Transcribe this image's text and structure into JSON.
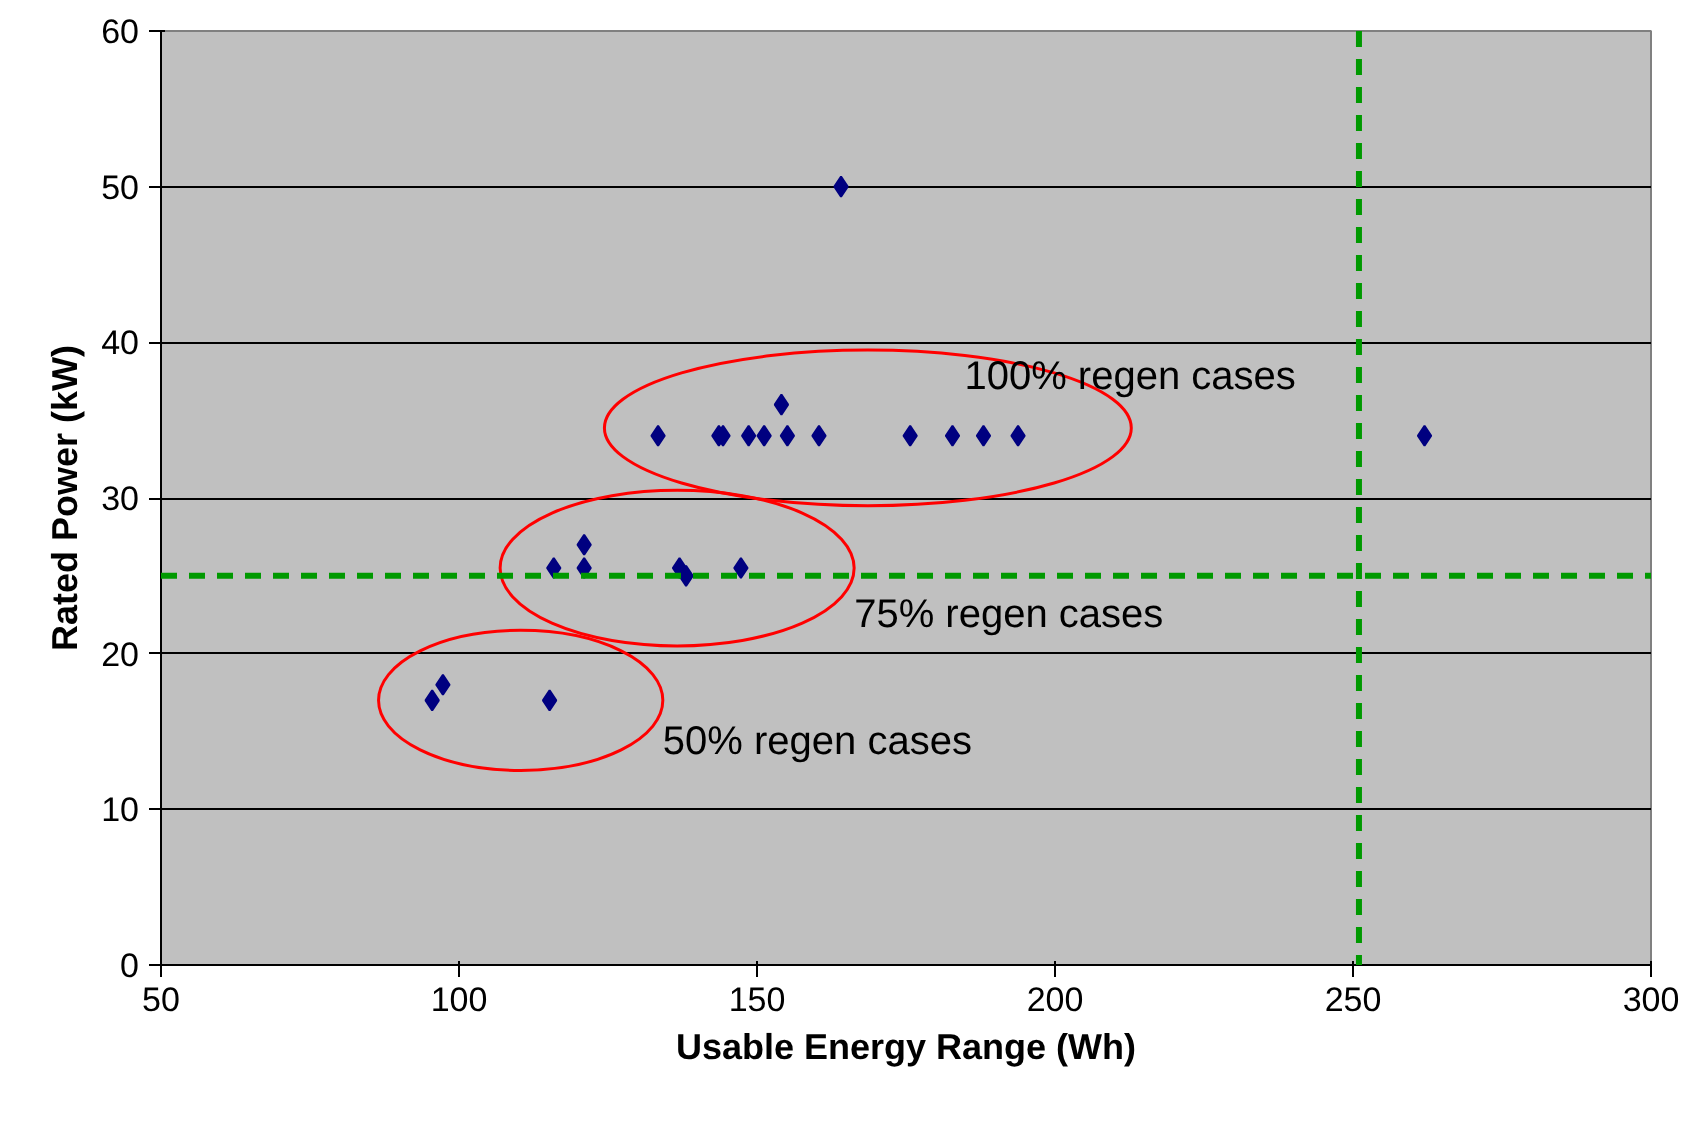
{
  "chart_data": {
    "type": "scatter",
    "xlabel": "Usable Energy Range (Wh)",
    "ylabel": "Rated Power (kW)",
    "xlim": [
      50,
      300
    ],
    "ylim": [
      0,
      60
    ],
    "xticks": [
      50,
      100,
      150,
      200,
      250,
      300
    ],
    "yticks": [
      0,
      10,
      20,
      30,
      40,
      50,
      60
    ],
    "grid": "y",
    "marker": "diamond",
    "series": [
      {
        "color": "#000080",
        "x": [
          133.4,
          143.6,
          144.3,
          148.6,
          151.2,
          154.1,
          155.1,
          160.4,
          175.7,
          182.8,
          188.0,
          193.8
        ],
        "values": [
          34,
          34,
          34,
          34,
          34,
          36,
          34,
          34,
          34,
          34,
          34,
          34
        ]
      },
      {
        "color": "#000080",
        "x": [
          115.9,
          121.0,
          121.0,
          137.0,
          138.1,
          147.3
        ],
        "values": [
          25.5,
          27,
          25.5,
          25.5,
          25,
          25.5
        ]
      },
      {
        "color": "#000080",
        "x": [
          95.5,
          97.3,
          115.2
        ],
        "values": [
          17,
          18,
          17
        ]
      },
      {
        "color": "#000080",
        "x": [
          164.1,
          262
        ],
        "values": [
          50,
          34
        ]
      }
    ],
    "annotations": [
      "100% regen cases",
      "75% regen cases",
      "50% regen cases"
    ],
    "ref_lines": [
      {
        "axis": "y",
        "value": 25,
        "color": "#009900",
        "line_style": "dashed"
      },
      {
        "axis": "x",
        "value": 251,
        "color": "#009900",
        "line_style": "dashed"
      }
    ]
  }
}
